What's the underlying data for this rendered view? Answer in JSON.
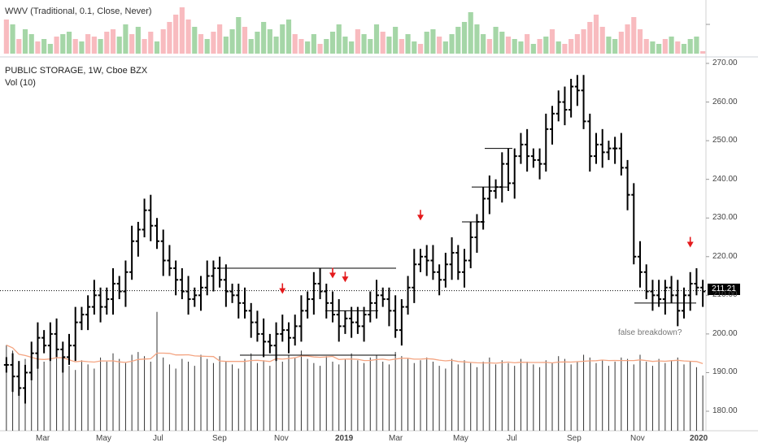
{
  "wwv_label": "WWV (Traditional, 0.1, Close, Never)",
  "title": "PUBLIC STORAGE, 1W, Cboe BZX",
  "vol_label": "Vol (10)",
  "last_price": "211.21",
  "annotation": "false breakdown?",
  "colors": {
    "bar": "#000000",
    "wwv_up": "#a5d6a7",
    "wwv_down": "#f8bbbf",
    "vol_ma": "#f4a582",
    "arrow": "#e41a1c"
  },
  "chart_data": {
    "type": "bar",
    "title": "PUBLIC STORAGE, 1W, Cboe BZX",
    "ylabel": "",
    "ylim": [
      176,
      272
    ],
    "y_ticks": [
      "180.00",
      "190.00",
      "200.00",
      "210.00",
      "220.00",
      "230.00",
      "240.00",
      "250.00",
      "260.00",
      "270.00"
    ],
    "x_ticks": [
      "Mar",
      "May",
      "Jul",
      "Sep",
      "Nov",
      "2019",
      "Mar",
      "May",
      "Jul",
      "Sep",
      "Nov",
      "2020"
    ],
    "closes": [
      192,
      189,
      186,
      190,
      195,
      199,
      197,
      200,
      196,
      194,
      197,
      203,
      205,
      207,
      210,
      207,
      209,
      213,
      211,
      216,
      224,
      227,
      232,
      228,
      224,
      219,
      217,
      214,
      211,
      209,
      210,
      212,
      215,
      217,
      214,
      211,
      210,
      208,
      206,
      203,
      200,
      198,
      197,
      200,
      201,
      199,
      202,
      206,
      209,
      213,
      211,
      208,
      205,
      202,
      204,
      203,
      202,
      205,
      208,
      210,
      209,
      206,
      201,
      207,
      212,
      218,
      220,
      219,
      216,
      214,
      218,
      221,
      216,
      219,
      225,
      229,
      235,
      237,
      238,
      244,
      239,
      246,
      249,
      246,
      245,
      244,
      253,
      257,
      260,
      258,
      264,
      263,
      255,
      246,
      249,
      247,
      248,
      248,
      243,
      236,
      220,
      216,
      211,
      210,
      209,
      212,
      210,
      206,
      210,
      213,
      212,
      211
    ],
    "last_price": 211.21,
    "annotations": [
      "false breakdown?"
    ]
  },
  "volume_bars": [
    62,
    58,
    46,
    52,
    48,
    45,
    50,
    55,
    60,
    52,
    47,
    44,
    51,
    48,
    45,
    53,
    50,
    56,
    52,
    49,
    55,
    57,
    54,
    50,
    86,
    53,
    48,
    45,
    52,
    50,
    47,
    55,
    52,
    49,
    54,
    50,
    48,
    45,
    52,
    56,
    49,
    51,
    47,
    70,
    50,
    55,
    53,
    58,
    52,
    49,
    47,
    54,
    50,
    48,
    52,
    56,
    51,
    49,
    53,
    55,
    50,
    48,
    57,
    54,
    52,
    49,
    51,
    53,
    50,
    47,
    45,
    52,
    48,
    51,
    49,
    46,
    50,
    53,
    48,
    51,
    49,
    47,
    52,
    50,
    48,
    46,
    51,
    49,
    54,
    52,
    48,
    50,
    55,
    53,
    49,
    51,
    47,
    50,
    53,
    52,
    48,
    55,
    50,
    47,
    52,
    49,
    51,
    53,
    48,
    50,
    46,
    40
  ],
  "wwv_bars": [
    {
      "v": 0.7,
      "d": 0
    },
    {
      "v": 0.6,
      "d": 1
    },
    {
      "v": 0.3,
      "d": 0
    },
    {
      "v": 0.5,
      "d": 1
    },
    {
      "v": 0.4,
      "d": 1
    },
    {
      "v": 0.25,
      "d": 0
    },
    {
      "v": 0.3,
      "d": 1
    },
    {
      "v": 0.2,
      "d": 1
    },
    {
      "v": 0.35,
      "d": 0
    },
    {
      "v": 0.4,
      "d": 1
    },
    {
      "v": 0.45,
      "d": 1
    },
    {
      "v": 0.3,
      "d": 0
    },
    {
      "v": 0.25,
      "d": 1
    },
    {
      "v": 0.4,
      "d": 0
    },
    {
      "v": 0.35,
      "d": 0
    },
    {
      "v": 0.3,
      "d": 1
    },
    {
      "v": 0.45,
      "d": 0
    },
    {
      "v": 0.5,
      "d": 0
    },
    {
      "v": 0.35,
      "d": 1
    },
    {
      "v": 0.6,
      "d": 1
    },
    {
      "v": 0.4,
      "d": 0
    },
    {
      "v": 0.55,
      "d": 1
    },
    {
      "v": 0.3,
      "d": 0
    },
    {
      "v": 0.45,
      "d": 0
    },
    {
      "v": 0.25,
      "d": 1
    },
    {
      "v": 0.5,
      "d": 0
    },
    {
      "v": 0.65,
      "d": 0
    },
    {
      "v": 0.8,
      "d": 0
    },
    {
      "v": 0.95,
      "d": 0
    },
    {
      "v": 0.7,
      "d": 0
    },
    {
      "v": 0.55,
      "d": 1
    },
    {
      "v": 0.4,
      "d": 0
    },
    {
      "v": 0.3,
      "d": 1
    },
    {
      "v": 0.45,
      "d": 0
    },
    {
      "v": 0.6,
      "d": 0
    },
    {
      "v": 0.35,
      "d": 1
    },
    {
      "v": 0.5,
      "d": 1
    },
    {
      "v": 0.75,
      "d": 1
    },
    {
      "v": 0.55,
      "d": 0
    },
    {
      "v": 0.3,
      "d": 1
    },
    {
      "v": 0.45,
      "d": 1
    },
    {
      "v": 0.65,
      "d": 1
    },
    {
      "v": 0.5,
      "d": 1
    },
    {
      "v": 0.35,
      "d": 1
    },
    {
      "v": 0.6,
      "d": 1
    },
    {
      "v": 0.7,
      "d": 1
    },
    {
      "v": 0.4,
      "d": 0
    },
    {
      "v": 0.3,
      "d": 0
    },
    {
      "v": 0.25,
      "d": 1
    },
    {
      "v": 0.4,
      "d": 1
    },
    {
      "v": 0.2,
      "d": 0
    },
    {
      "v": 0.3,
      "d": 1
    },
    {
      "v": 0.45,
      "d": 1
    },
    {
      "v": 0.6,
      "d": 1
    },
    {
      "v": 0.35,
      "d": 1
    },
    {
      "v": 0.25,
      "d": 1
    },
    {
      "v": 0.5,
      "d": 0
    },
    {
      "v": 0.4,
      "d": 1
    },
    {
      "v": 0.3,
      "d": 1
    },
    {
      "v": 0.6,
      "d": 1
    },
    {
      "v": 0.45,
      "d": 0
    },
    {
      "v": 0.35,
      "d": 1
    },
    {
      "v": 0.55,
      "d": 1
    },
    {
      "v": 0.3,
      "d": 0
    },
    {
      "v": 0.4,
      "d": 1
    },
    {
      "v": 0.25,
      "d": 1
    },
    {
      "v": 0.2,
      "d": 0
    },
    {
      "v": 0.45,
      "d": 1
    },
    {
      "v": 0.5,
      "d": 1
    },
    {
      "v": 0.35,
      "d": 0
    },
    {
      "v": 0.25,
      "d": 1
    },
    {
      "v": 0.4,
      "d": 1
    },
    {
      "v": 0.55,
      "d": 1
    },
    {
      "v": 0.65,
      "d": 1
    },
    {
      "v": 0.85,
      "d": 1
    },
    {
      "v": 0.6,
      "d": 1
    },
    {
      "v": 0.4,
      "d": 1
    },
    {
      "v": 0.3,
      "d": 0
    },
    {
      "v": 0.55,
      "d": 1
    },
    {
      "v": 0.45,
      "d": 1
    },
    {
      "v": 0.35,
      "d": 0
    },
    {
      "v": 0.3,
      "d": 1
    },
    {
      "v": 0.25,
      "d": 1
    },
    {
      "v": 0.4,
      "d": 0
    },
    {
      "v": 0.2,
      "d": 1
    },
    {
      "v": 0.3,
      "d": 0
    },
    {
      "v": 0.35,
      "d": 1
    },
    {
      "v": 0.5,
      "d": 0
    },
    {
      "v": 0.25,
      "d": 1
    },
    {
      "v": 0.2,
      "d": 0
    },
    {
      "v": 0.3,
      "d": 0
    },
    {
      "v": 0.4,
      "d": 0
    },
    {
      "v": 0.5,
      "d": 0
    },
    {
      "v": 0.65,
      "d": 0
    },
    {
      "v": 0.8,
      "d": 0
    },
    {
      "v": 0.55,
      "d": 0
    },
    {
      "v": 0.35,
      "d": 1
    },
    {
      "v": 0.3,
      "d": 1
    },
    {
      "v": 0.45,
      "d": 0
    },
    {
      "v": 0.6,
      "d": 0
    },
    {
      "v": 0.75,
      "d": 0
    },
    {
      "v": 0.5,
      "d": 0
    },
    {
      "v": 0.3,
      "d": 0
    },
    {
      "v": 0.25,
      "d": 1
    },
    {
      "v": 0.2,
      "d": 1
    },
    {
      "v": 0.3,
      "d": 0
    },
    {
      "v": 0.35,
      "d": 1
    },
    {
      "v": 0.25,
      "d": 0
    },
    {
      "v": 0.2,
      "d": 1
    },
    {
      "v": 0.3,
      "d": 1
    },
    {
      "v": 0.35,
      "d": 1
    },
    {
      "v": 0.05,
      "d": 0
    }
  ],
  "arrow_bars": [
    44,
    52,
    54,
    66,
    109,
    112
  ]
}
